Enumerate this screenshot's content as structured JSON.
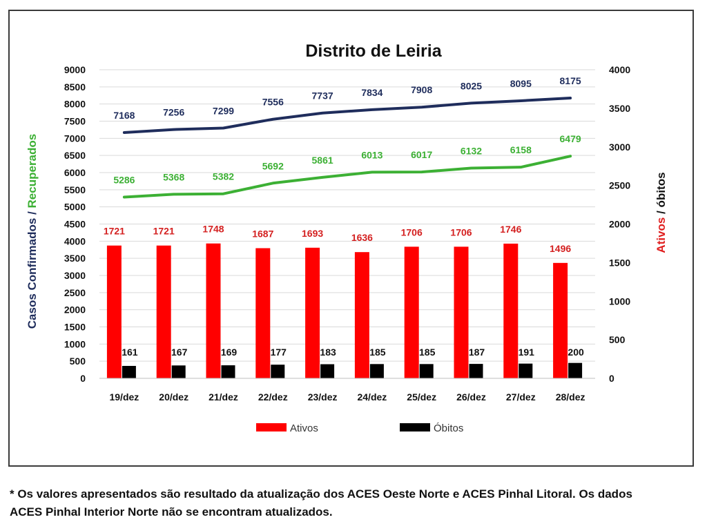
{
  "chart_data": {
    "type": "bar",
    "title": "Distrito de Leiria",
    "categories": [
      "19/dez",
      "20/dez",
      "21/dez",
      "22/dez",
      "23/dez",
      "24/dez",
      "25/dez",
      "26/dez",
      "27/dez",
      "28/dez"
    ],
    "left_axis": {
      "label_part1": "Casos Confirmados",
      "label_sep": " / ",
      "label_part2": "Recuperados",
      "ylim": [
        0,
        9000
      ],
      "ticks": [
        "0",
        "500",
        "1000",
        "1500",
        "2000",
        "2500",
        "3000",
        "3500",
        "4000",
        "4500",
        "5000",
        "5500",
        "6000",
        "6500",
        "7000",
        "7500",
        "8000",
        "8500",
        "9000"
      ]
    },
    "right_axis": {
      "label_part1": "Ativos",
      "label_sep": " / ",
      "label_part2": "óbitos",
      "ylim": [
        0,
        4000
      ],
      "ticks": [
        "0",
        "500",
        "1000",
        "1500",
        "2000",
        "2500",
        "3000",
        "3500",
        "4000"
      ]
    },
    "series": [
      {
        "name": "",
        "kind": "line",
        "axis": "left",
        "color": "#1f2d5c",
        "values": [
          7168,
          7256,
          7299,
          7556,
          7737,
          7834,
          7908,
          8025,
          8095,
          8175
        ]
      },
      {
        "name": "",
        "kind": "line",
        "axis": "left",
        "color": "#3cb034",
        "values": [
          5286,
          5368,
          5382,
          5692,
          5861,
          6013,
          6017,
          6132,
          6158,
          6479
        ]
      },
      {
        "name": "Ativos",
        "kind": "bar",
        "axis": "right",
        "color": "#ff0000",
        "label_color": "#d42020",
        "values": [
          1721,
          1721,
          1748,
          1687,
          1693,
          1636,
          1706,
          1706,
          1746,
          1496
        ]
      },
      {
        "name": "Óbitos",
        "kind": "bar",
        "axis": "right",
        "color": "#000000",
        "label_color": "#111111",
        "values": [
          161,
          167,
          169,
          177,
          183,
          185,
          185,
          187,
          191,
          200
        ]
      }
    ],
    "grid": true,
    "legend_position": "bottom"
  },
  "footnote": {
    "line1": "* Os valores apresentados são resultado da atualização dos ACES Oeste Norte e ACES Pinhal Litoral. Os dados",
    "line2": "ACES Pinhal Interior Norte não se encontram atualizados."
  }
}
